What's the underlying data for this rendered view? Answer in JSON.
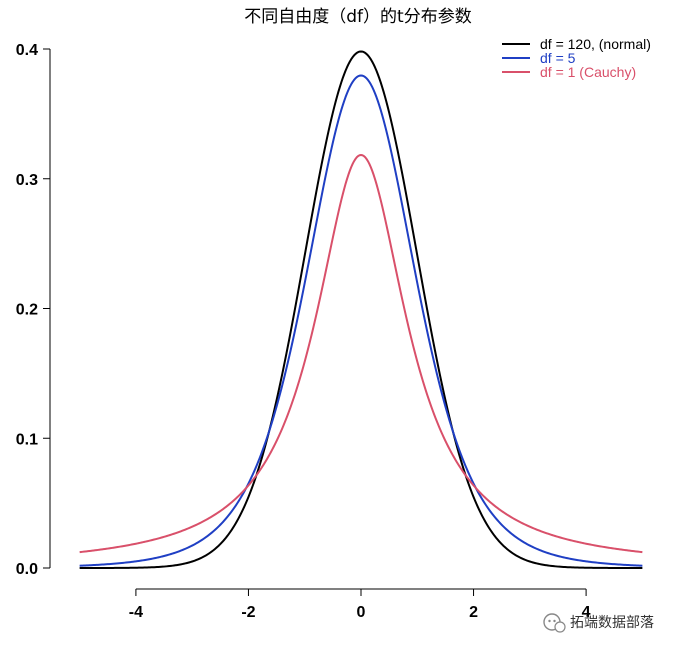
{
  "chart_data": {
    "type": "line",
    "title": "不同自由度（df）的t分布参数",
    "xlabel": "",
    "ylabel": "",
    "xlim": [
      -5.1,
      5.1
    ],
    "ylim": [
      0,
      0.4
    ],
    "x_ticks": [
      -4,
      -2,
      0,
      2,
      4
    ],
    "y_ticks": [
      0.0,
      0.1,
      0.2,
      0.3,
      0.4
    ],
    "x_tick_labels": [
      "-4",
      "-2",
      "0",
      "2",
      "4"
    ],
    "y_tick_labels": [
      "0.0",
      "0.1",
      "0.2",
      "0.3",
      "0.4"
    ],
    "grid": false,
    "legend_position": "top-right",
    "x": [
      -5,
      -4.5,
      -4,
      -3.5,
      -3,
      -2.5,
      -2,
      -1.5,
      -1,
      -0.5,
      0,
      0.5,
      1,
      1.5,
      2,
      2.5,
      3,
      3.5,
      4,
      4.5,
      5
    ],
    "series": [
      {
        "name": "df = 120, (normal)",
        "color": "#000000",
        "values": [
          0.0,
          0.0,
          0.0002,
          0.001,
          0.0047,
          0.0178,
          0.0546,
          0.1302,
          0.2415,
          0.3514,
          0.3981,
          0.3514,
          0.2415,
          0.1302,
          0.0546,
          0.0178,
          0.0047,
          0.001,
          0.0002,
          0.0,
          0.0
        ]
      },
      {
        "name": "df = 5",
        "color": "#1f3fc4",
        "values": [
          0.0018,
          0.0033,
          0.0051,
          0.009,
          0.0173,
          0.0338,
          0.0651,
          0.1245,
          0.2197,
          0.3279,
          0.3796,
          0.3279,
          0.2197,
          0.1245,
          0.0651,
          0.0338,
          0.0173,
          0.009,
          0.0051,
          0.0033,
          0.0018
        ]
      },
      {
        "name": "df = 1 (Cauchy)",
        "color": "#d9506a",
        "values": [
          0.0122,
          0.015,
          0.0187,
          0.0241,
          0.0318,
          0.0439,
          0.0637,
          0.0979,
          0.1592,
          0.2546,
          0.3183,
          0.2546,
          0.1592,
          0.0979,
          0.0637,
          0.0439,
          0.0318,
          0.0241,
          0.0187,
          0.015,
          0.0122
        ]
      }
    ]
  },
  "watermark": {
    "icon": "wechat-official-account-icon",
    "text": "拓端数据部落"
  }
}
